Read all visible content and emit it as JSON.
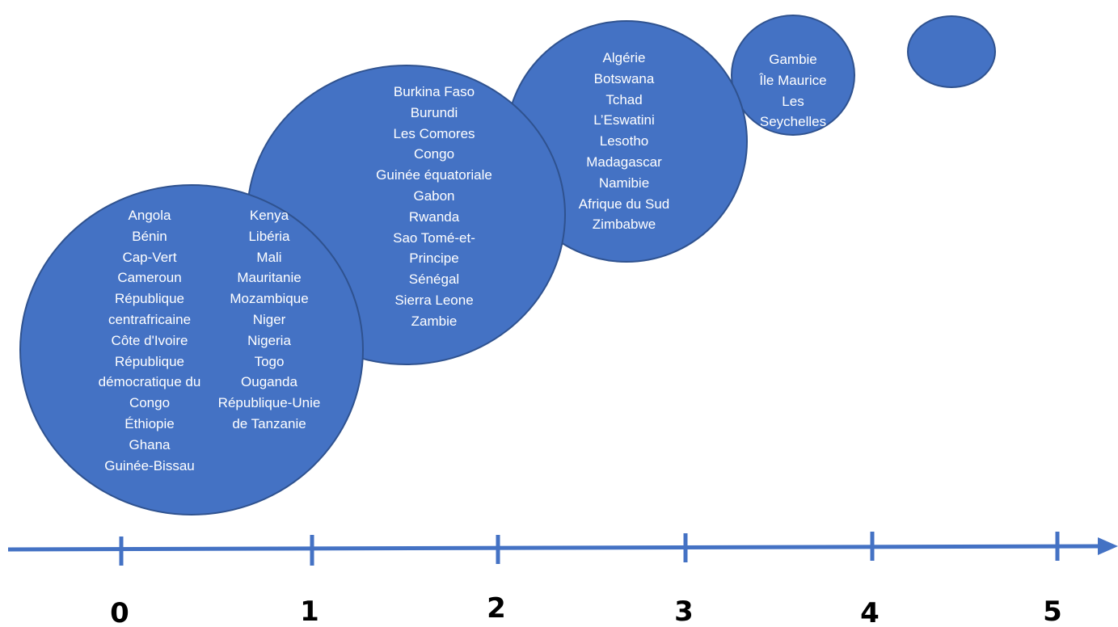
{
  "colors": {
    "bubble_fill": "#4472c4",
    "bubble_outline": "#2f528f",
    "axis": "#4472c4",
    "text": "#ffffff"
  },
  "axis": {
    "ticks": [
      "0",
      "1",
      "2",
      "3",
      "4",
      "5"
    ]
  },
  "bubbles": [
    {
      "level": "0",
      "columns": [
        [
          "Angola",
          "Bénin",
          "Cap-Vert",
          "Cameroun",
          "République",
          "centrafricaine",
          "Côte d'Ivoire",
          "République",
          "démocratique du",
          "Congo",
          "Éthiopie",
          "Ghana",
          "Guinée-Bissau"
        ],
        [
          "Kenya",
          "Libéria",
          "Mali",
          "Mauritanie",
          "Mozambique",
          "Niger",
          "Nigeria",
          "Togo",
          "Ouganda",
          "République-Unie",
          "de Tanzanie"
        ]
      ]
    },
    {
      "level": "1",
      "columns": [
        [
          "Burkina Faso",
          "Burundi",
          "Les Comores",
          "Congo",
          "Guinée équatoriale",
          "Gabon",
          "Rwanda",
          "Sao Tomé-et-",
          "Principe",
          "Sénégal",
          "Sierra Leone",
          "Zambie"
        ]
      ]
    },
    {
      "level": "2",
      "columns": [
        [
          "Algérie",
          "Botswana",
          "Tchad",
          "L’Eswatini",
          "Lesotho",
          "Madagascar",
          "Namibie",
          "Afrique du Sud",
          "Zimbabwe"
        ]
      ]
    },
    {
      "level": "3",
      "columns": [
        [
          "Gambie",
          "Île Maurice",
          "Les",
          "Seychelles"
        ]
      ]
    },
    {
      "level": "4",
      "columns": []
    }
  ]
}
